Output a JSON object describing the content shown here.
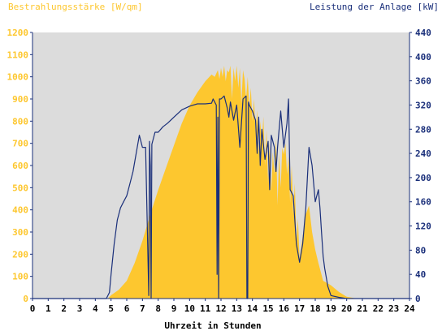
{
  "chart_data": {
    "type": "area",
    "left_axis_title": "Bestrahlungsstärke [W/qm]",
    "right_axis_title": "Leistung der Anlage [kW]",
    "xlabel": "Uhrzeit in Stunden",
    "xlim": [
      0,
      24
    ],
    "x_ticks": [
      0,
      1,
      2,
      3,
      4,
      5,
      6,
      7,
      8,
      9,
      10,
      11,
      12,
      13,
      14,
      15,
      16,
      17,
      18,
      19,
      20,
      21,
      22,
      23,
      24
    ],
    "y_left_lim": [
      0,
      1200
    ],
    "y_left_ticks": [
      0,
      100,
      200,
      300,
      400,
      500,
      600,
      700,
      800,
      900,
      1000,
      1100,
      1200
    ],
    "y_right_lim": [
      0,
      440
    ],
    "y_right_ticks": [
      0,
      40,
      80,
      120,
      160,
      200,
      240,
      280,
      320,
      360,
      400,
      440
    ],
    "grid": false,
    "colors": {
      "background": "#dcdcdc",
      "irradiance": "#fdc72f",
      "power": "#1a2f7a",
      "axis": "#1a2f7a"
    },
    "series": [
      {
        "axis": "left",
        "style": "area",
        "x": [
          0,
          4.8,
          5.0,
          5.5,
          6.0,
          6.5,
          7.0,
          7.5,
          8.0,
          8.5,
          9.0,
          9.5,
          10.0,
          10.5,
          11.0,
          11.4,
          11.6,
          11.8,
          11.9,
          12.0,
          12.1,
          12.2,
          12.3,
          12.4,
          12.5,
          12.6,
          12.7,
          12.8,
          12.9,
          13.0,
          13.1,
          13.2,
          13.3,
          13.4,
          13.5,
          13.6,
          13.7,
          13.8,
          13.9,
          14.0,
          14.1,
          14.2,
          14.3,
          14.4,
          14.5,
          14.6,
          14.7,
          14.8,
          14.9,
          15.0,
          15.1,
          15.2,
          15.3,
          15.4,
          15.5,
          15.6,
          15.7,
          15.8,
          15.9,
          16.0,
          16.1,
          16.2,
          16.3,
          16.4,
          16.5,
          16.6,
          16.7,
          16.8,
          16.9,
          17.0,
          17.2,
          17.4,
          17.6,
          17.8,
          18.0,
          18.2,
          18.5,
          19.0,
          19.5,
          20.0,
          20.5,
          21.0,
          24.0
        ],
        "values": [
          0,
          0,
          15,
          40,
          80,
          160,
          260,
          380,
          490,
          590,
          690,
          790,
          870,
          930,
          980,
          1010,
          1000,
          1030,
          990,
          1040,
          1000,
          1050,
          980,
          1030,
          1020,
          1050,
          900,
          1040,
          980,
          1050,
          950,
          1040,
          880,
          1030,
          990,
          900,
          1000,
          860,
          950,
          800,
          900,
          750,
          850,
          650,
          800,
          700,
          820,
          600,
          760,
          520,
          700,
          480,
          660,
          560,
          720,
          420,
          650,
          500,
          680,
          650,
          700,
          560,
          640,
          430,
          600,
          380,
          520,
          260,
          360,
          180,
          280,
          380,
          420,
          300,
          220,
          160,
          80,
          60,
          30,
          8,
          2,
          0,
          0
        ]
      },
      {
        "axis": "right",
        "style": "line",
        "x": [
          0,
          4.7,
          4.9,
          5.0,
          5.2,
          5.4,
          5.6,
          5.8,
          6.0,
          6.2,
          6.4,
          6.6,
          6.8,
          7.0,
          7.2,
          7.4,
          7.45,
          7.5,
          7.55,
          7.6,
          7.8,
          8.0,
          8.3,
          8.6,
          9.0,
          9.5,
          10.0,
          10.5,
          11.0,
          11.4,
          11.5,
          11.7,
          11.75,
          11.8,
          11.85,
          11.9,
          12.0,
          12.2,
          12.4,
          12.5,
          12.6,
          12.8,
          13.0,
          13.2,
          13.4,
          13.6,
          13.65,
          13.7,
          13.75,
          13.8,
          14.0,
          14.2,
          14.3,
          14.4,
          14.5,
          14.6,
          14.8,
          15.0,
          15.1,
          15.2,
          15.4,
          15.5,
          15.6,
          15.8,
          16.0,
          16.2,
          16.3,
          16.4,
          16.6,
          16.8,
          17.0,
          17.2,
          17.4,
          17.6,
          17.8,
          18.0,
          18.2,
          18.3,
          18.4,
          18.5,
          18.6,
          18.8,
          19.0,
          19.5,
          20.0,
          24.0
        ],
        "values": [
          0,
          0,
          10,
          40,
          90,
          130,
          150,
          160,
          170,
          190,
          210,
          240,
          270,
          250,
          250,
          5,
          260,
          220,
          0,
          255,
          275,
          275,
          284,
          290,
          300,
          312,
          318,
          322,
          322,
          323,
          330,
          320,
          40,
          300,
          0,
          330,
          330,
          335,
          315,
          300,
          325,
          295,
          320,
          250,
          330,
          335,
          0,
          0,
          325,
          320,
          310,
          295,
          240,
          300,
          220,
          280,
          230,
          260,
          180,
          270,
          250,
          210,
          250,
          310,
          250,
          290,
          330,
          180,
          170,
          90,
          60,
          90,
          150,
          250,
          220,
          160,
          180,
          150,
          110,
          70,
          50,
          20,
          5,
          2,
          0,
          0
        ]
      }
    ]
  }
}
